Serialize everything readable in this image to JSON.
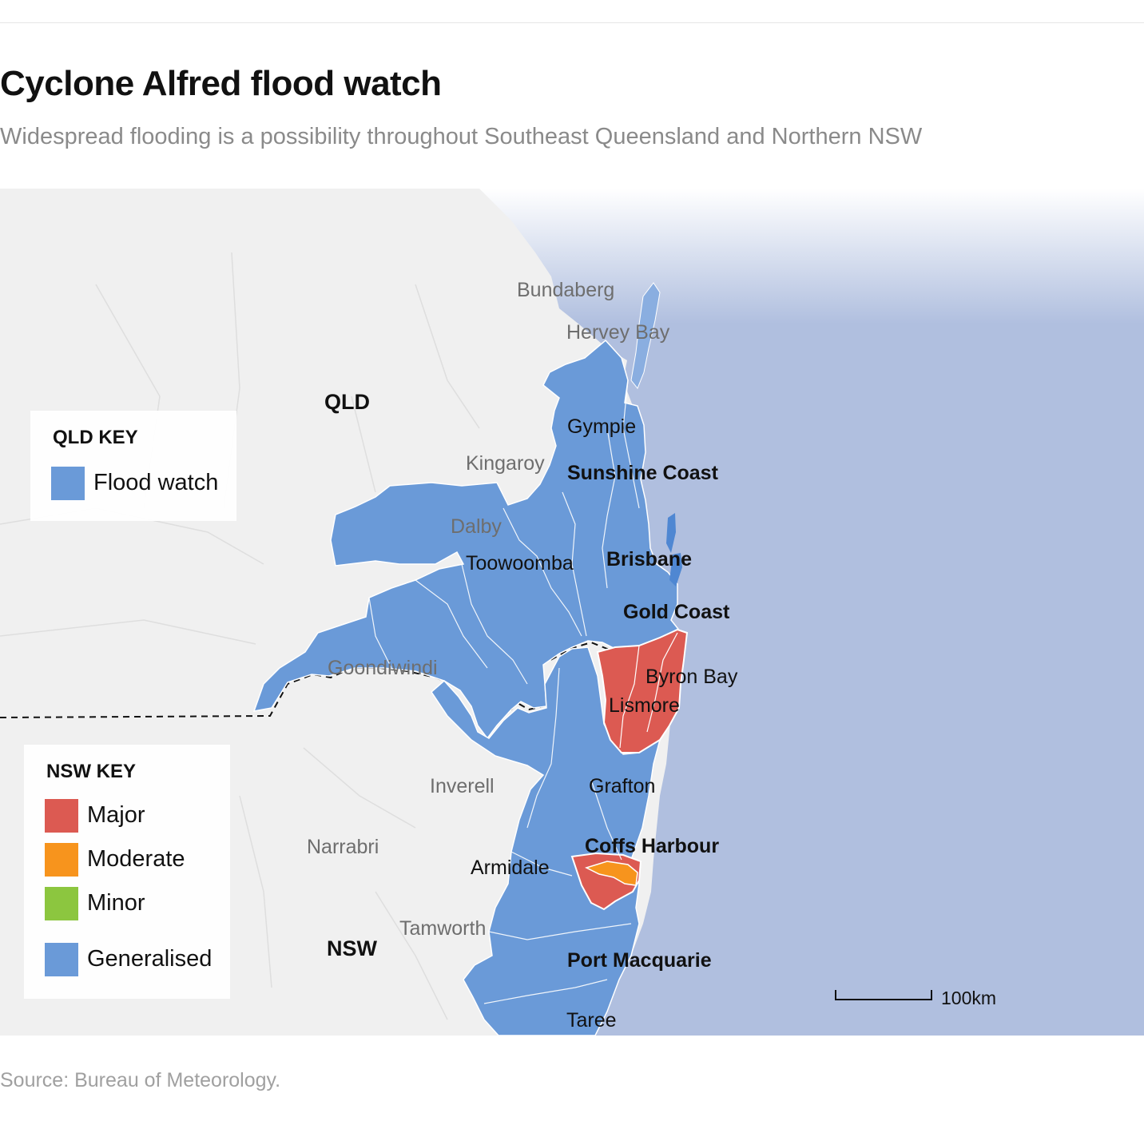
{
  "title": "Cyclone Alfred flood watch",
  "subtitle": "Widespread flooding is a possibility throughout Southeast Queensland and Northern NSW",
  "source": "Source: Bureau of Meteorology.",
  "colors": {
    "land": "#f0f0f0",
    "ocean": "#b0bfdf",
    "flood_watch": "#6a9ad8",
    "major": "#dc5a52",
    "moderate": "#f7941d",
    "minor": "#8cc63f",
    "generalised": "#6a9ad8"
  },
  "states": {
    "qld": "QLD",
    "nsw": "NSW"
  },
  "places": {
    "bundaberg": "Bundaberg",
    "hervey_bay": "Hervey Bay",
    "gympie": "Gympie",
    "kingaroy": "Kingaroy",
    "sunshine_coast": "Sunshine Coast",
    "dalby": "Dalby",
    "toowoomba": "Toowoomba",
    "brisbane": "Brisbane",
    "gold_coast": "Gold Coast",
    "goondiwindi": "Goondiwindi",
    "byron_bay": "Byron Bay",
    "lismore": "Lismore",
    "inverell": "Inverell",
    "grafton": "Grafton",
    "narrabri": "Narrabri",
    "coffs_harbour": "Coffs Harbour",
    "armidale": "Armidale",
    "tamworth": "Tamworth",
    "port_macquarie": "Port Macquarie",
    "taree": "Taree"
  },
  "qld_key": {
    "title": "QLD KEY",
    "items": [
      {
        "label": "Flood watch",
        "color": "#6a9ad8"
      }
    ]
  },
  "nsw_key": {
    "title": "NSW KEY",
    "items": [
      {
        "label": "Major",
        "color": "#dc5a52"
      },
      {
        "label": "Moderate",
        "color": "#f7941d"
      },
      {
        "label": "Minor",
        "color": "#8cc63f"
      },
      {
        "label": "Generalised",
        "color": "#6a9ad8"
      }
    ]
  },
  "scale": {
    "label": "100km"
  }
}
